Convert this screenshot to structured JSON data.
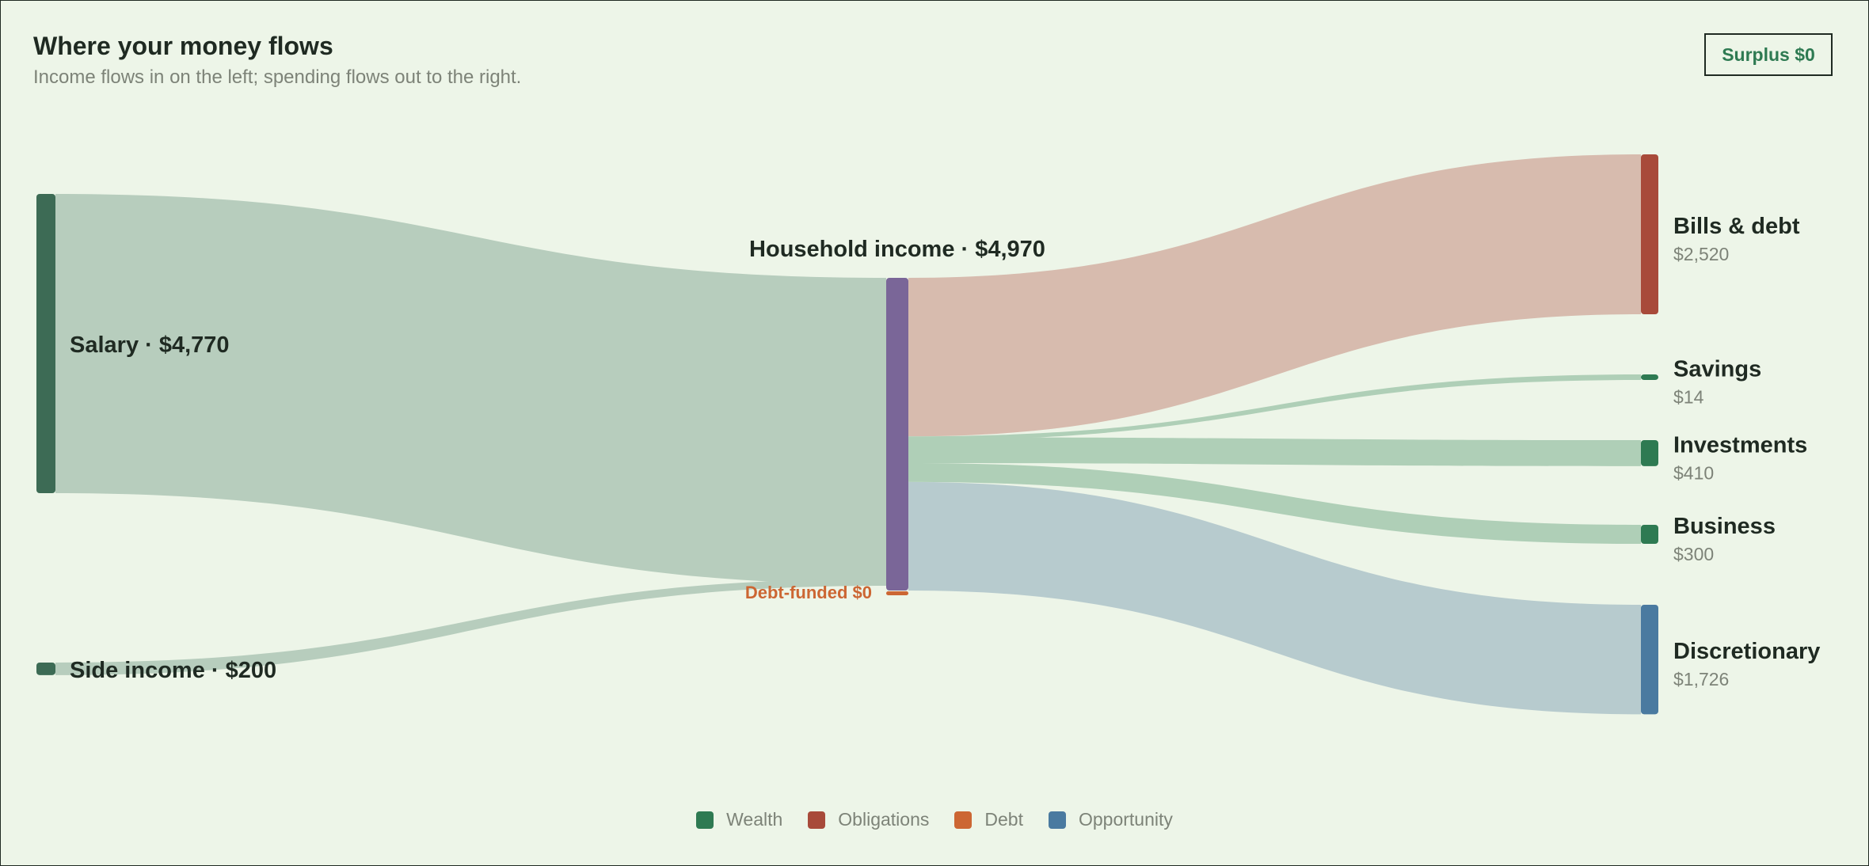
{
  "header": {
    "title": "Where your money flows",
    "subtitle": "Income flows in on the left; spending flows out to the right.",
    "surplus_badge": "Surplus $0"
  },
  "chart_data": {
    "type": "sankey",
    "title": "Where your money flows",
    "subtitle": "Income flows in on the left; spending flows out to the right.",
    "sources": [
      {
        "name": "Salary",
        "value": 4770,
        "label": "Salary · $4,770",
        "category": "Wealth"
      },
      {
        "name": "Side income",
        "value": 200,
        "label": "Side income · $200",
        "category": "Wealth"
      }
    ],
    "hub": {
      "name": "Household income",
      "value": 4970,
      "label": "Household income · $4,970"
    },
    "debt_node": {
      "name": "Debt-funded",
      "value": 0,
      "label": "Debt-funded $0"
    },
    "targets": [
      {
        "name": "Bills & debt",
        "value": 2520,
        "amount_label": "$2,520",
        "category": "Obligations"
      },
      {
        "name": "Savings",
        "value": 14,
        "amount_label": "$14",
        "category": "Wealth"
      },
      {
        "name": "Investments",
        "value": 410,
        "amount_label": "$410",
        "category": "Wealth"
      },
      {
        "name": "Business",
        "value": 300,
        "amount_label": "$300",
        "category": "Wealth"
      },
      {
        "name": "Discretionary",
        "value": 1726,
        "amount_label": "$1,726",
        "category": "Opportunity"
      }
    ],
    "surplus": 0,
    "legend": [
      {
        "name": "Wealth",
        "color": "#2e7a52"
      },
      {
        "name": "Obligations",
        "color": "#a84a3a"
      },
      {
        "name": "Debt",
        "color": "#cc6633"
      },
      {
        "name": "Opportunity",
        "color": "#4a7aa0"
      }
    ],
    "colors": {
      "source_node": "#3d6b55",
      "hub_node": "#7a6698",
      "source_flow": "#b7cdbd",
      "obligations_flow": "#d7bbae",
      "wealth_flow": "#afcfb7",
      "opportunity_flow": "#b7cbce",
      "debt_label": "#cc6633"
    }
  }
}
